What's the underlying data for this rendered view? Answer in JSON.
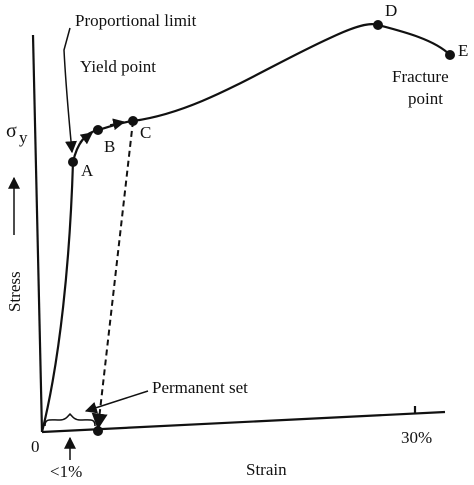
{
  "labels": {
    "proportional_limit": "Proportional limit",
    "yield_point": "Yield point",
    "point_a": "A",
    "point_b": "B",
    "point_c": "C",
    "point_d": "D",
    "point_e": "E",
    "fracture_line1": "Fracture",
    "fracture_line2": "point",
    "sigma": "σ",
    "sigma_sub": "y",
    "stress": "Stress",
    "permanent_set": "Permanent set",
    "origin": "0",
    "less_one": "<1%",
    "strain": "Strain",
    "thirty": "30%"
  }
}
